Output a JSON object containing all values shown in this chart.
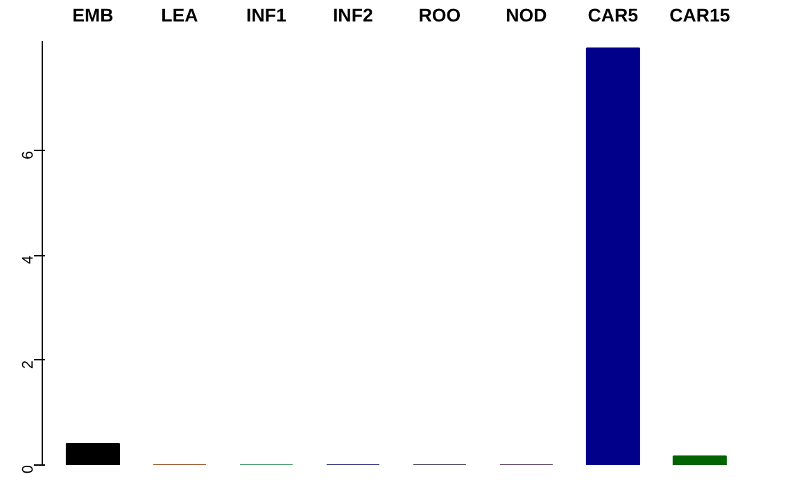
{
  "chart_data": {
    "type": "bar",
    "categories": [
      "EMB",
      "LEA",
      "INF1",
      "INF2",
      "ROO",
      "NOD",
      "CAR5",
      "CAR15"
    ],
    "values": [
      0.41,
      0,
      0,
      0,
      0,
      0,
      7.96,
      0.17
    ],
    "colors": [
      "#000000",
      "#8b4513",
      "#2e8b57",
      "#191970",
      "#2f2f4f",
      "#4b2f4f",
      "#00008b",
      "#006400"
    ],
    "ylim": [
      0,
      8.1
    ],
    "yticks": [
      0,
      2,
      4,
      6
    ],
    "grid": false
  }
}
